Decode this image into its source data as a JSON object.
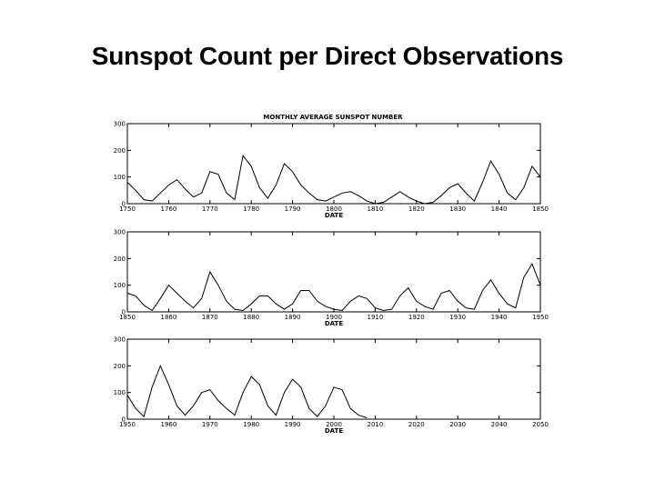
{
  "slide": {
    "title": "Sunspot Count per Direct Observations"
  },
  "chart_data": {
    "type": "line",
    "title": "MONTHLY AVERAGE SUNSPOT NUMBER",
    "xlabel": "DATE",
    "ylim": [
      0,
      300
    ],
    "yticks": [
      0,
      100,
      200,
      300
    ],
    "grid": false,
    "panels": [
      {
        "xlim": [
          1750,
          1850
        ],
        "xticks": [
          1750,
          1760,
          1770,
          1780,
          1790,
          1800,
          1810,
          1820,
          1830,
          1840,
          1850
        ],
        "x": [
          1750,
          1752,
          1754,
          1756,
          1758,
          1760,
          1762,
          1764,
          1766,
          1768,
          1770,
          1772,
          1774,
          1776,
          1778,
          1780,
          1782,
          1784,
          1786,
          1788,
          1790,
          1792,
          1794,
          1796,
          1798,
          1800,
          1802,
          1804,
          1806,
          1808,
          1810,
          1812,
          1814,
          1816,
          1818,
          1820,
          1822,
          1824,
          1826,
          1828,
          1830,
          1832,
          1834,
          1836,
          1838,
          1840,
          1842,
          1844,
          1846,
          1848,
          1850
        ],
        "y": [
          80,
          50,
          15,
          10,
          40,
          70,
          90,
          55,
          25,
          40,
          120,
          110,
          40,
          15,
          180,
          140,
          60,
          20,
          70,
          150,
          120,
          70,
          40,
          15,
          10,
          25,
          40,
          45,
          30,
          10,
          0,
          5,
          25,
          45,
          25,
          10,
          0,
          5,
          30,
          60,
          75,
          40,
          10,
          80,
          160,
          110,
          40,
          15,
          60,
          140,
          100
        ]
      },
      {
        "xlim": [
          1850,
          1950
        ],
        "xticks": [
          1850,
          1860,
          1870,
          1880,
          1890,
          1900,
          1910,
          1920,
          1930,
          1940,
          1950
        ],
        "x": [
          1850,
          1852,
          1854,
          1856,
          1858,
          1860,
          1862,
          1864,
          1866,
          1868,
          1870,
          1872,
          1874,
          1876,
          1878,
          1880,
          1882,
          1884,
          1886,
          1888,
          1890,
          1892,
          1894,
          1896,
          1898,
          1900,
          1902,
          1904,
          1906,
          1908,
          1910,
          1912,
          1914,
          1916,
          1918,
          1920,
          1922,
          1924,
          1926,
          1928,
          1930,
          1932,
          1934,
          1936,
          1938,
          1940,
          1942,
          1944,
          1946,
          1948,
          1950
        ],
        "y": [
          70,
          60,
          25,
          5,
          50,
          100,
          70,
          40,
          15,
          50,
          150,
          100,
          40,
          10,
          5,
          30,
          60,
          60,
          30,
          10,
          30,
          80,
          80,
          40,
          20,
          10,
          5,
          40,
          60,
          50,
          15,
          5,
          10,
          60,
          90,
          40,
          20,
          10,
          70,
          80,
          40,
          15,
          10,
          80,
          120,
          70,
          30,
          15,
          130,
          180,
          100
        ]
      },
      {
        "xlim": [
          1950,
          2050
        ],
        "xticks": [
          1950,
          1960,
          1970,
          1980,
          1990,
          2000,
          2010,
          2020,
          2030,
          2040,
          2050
        ],
        "x": [
          1950,
          1952,
          1954,
          1956,
          1958,
          1960,
          1962,
          1964,
          1966,
          1968,
          1970,
          1972,
          1974,
          1976,
          1978,
          1980,
          1982,
          1984,
          1986,
          1988,
          1990,
          1992,
          1994,
          1996,
          1998,
          2000,
          2002,
          2004,
          2006,
          2008
        ],
        "y": [
          90,
          40,
          10,
          120,
          200,
          130,
          50,
          15,
          50,
          100,
          110,
          70,
          40,
          15,
          100,
          160,
          130,
          50,
          15,
          100,
          150,
          120,
          40,
          10,
          50,
          120,
          110,
          40,
          15,
          5
        ]
      }
    ]
  }
}
